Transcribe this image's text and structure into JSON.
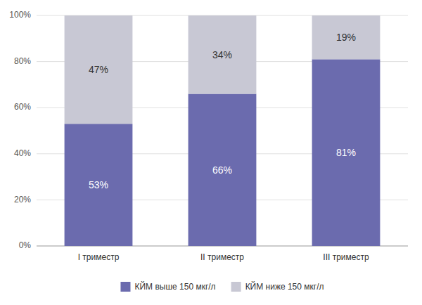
{
  "chart_data": {
    "type": "bar",
    "stacked": true,
    "categories": [
      "I триместр",
      "II триместр",
      "III триместр"
    ],
    "series": [
      {
        "name": "КЙМ выше 150 мкг/л",
        "color": "#6B6BAE",
        "values": [
          53,
          66,
          81
        ],
        "value_labels": [
          "53%",
          "66%",
          "81%"
        ]
      },
      {
        "name": "КЙМ ниже 150 мкг/л",
        "color": "#C8C8D4",
        "values": [
          47,
          34,
          19
        ],
        "value_labels": [
          "47%",
          "34%",
          "19%"
        ]
      }
    ],
    "ylim": [
      0,
      100
    ],
    "yticks": [
      {
        "value": 0,
        "label": "0%"
      },
      {
        "value": 20,
        "label": "20%"
      },
      {
        "value": 40,
        "label": "40%"
      },
      {
        "value": 60,
        "label": "60%"
      },
      {
        "value": 80,
        "label": "80%"
      },
      {
        "value": 100,
        "label": "100%"
      }
    ],
    "grid": true,
    "data_labels": true,
    "legend": "bottom"
  }
}
